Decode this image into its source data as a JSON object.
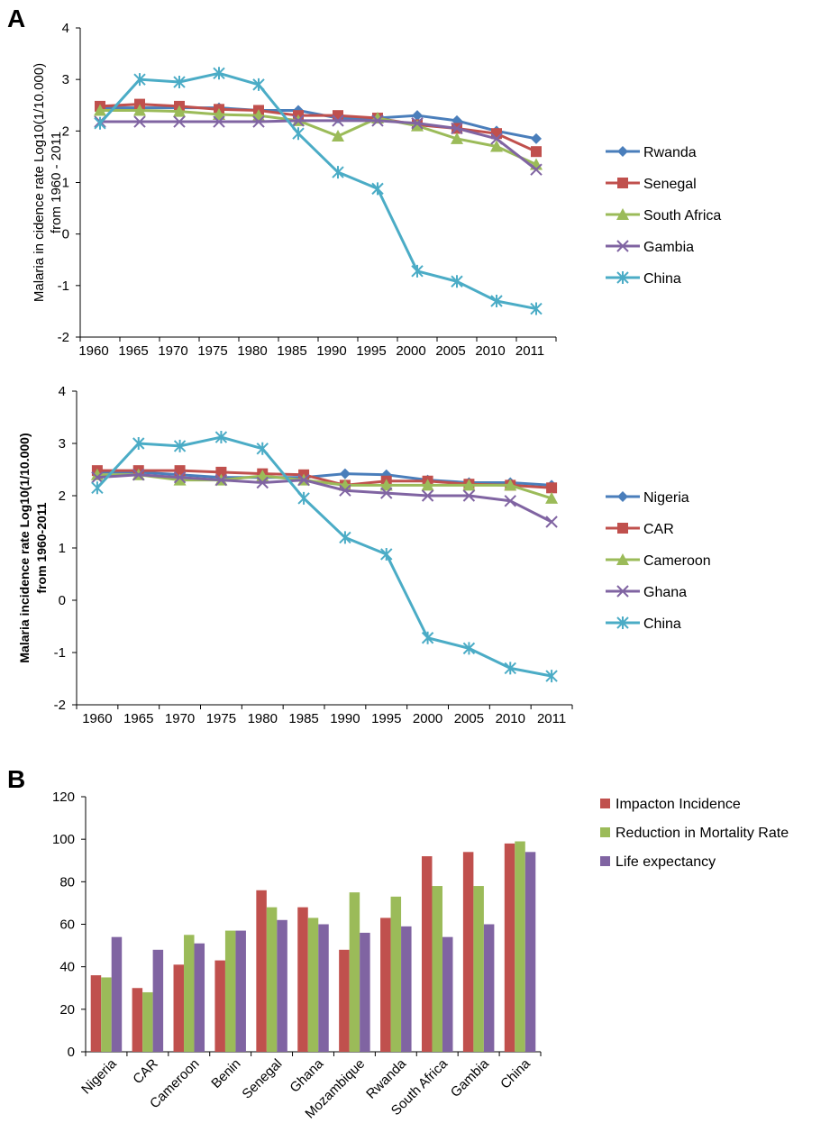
{
  "panels": {
    "a": "A",
    "b": "B"
  },
  "colors": {
    "rwanda": "#4a7ebb",
    "senegal": "#c0504d",
    "south_africa": "#9bbb59",
    "gambia": "#8064a2",
    "china": "#4bacc6",
    "bar_incidence": "#c0504d",
    "bar_mortality": "#9bbb59",
    "bar_life": "#8064a2"
  },
  "chart_data": [
    {
      "type": "line",
      "ylabel": [
        "Malaria in cidence rate Log10(1/10.000)",
        "from 1960 - 2011"
      ],
      "ylim": [
        -2,
        4
      ],
      "yticks": [
        -2,
        -1,
        0,
        1,
        2,
        3,
        4
      ],
      "x": [
        "1960",
        "1965",
        "1970",
        "1975",
        "1980",
        "1985",
        "1990",
        "1995",
        "2000",
        "2005",
        "2010",
        "2011"
      ],
      "legend_position": "right",
      "series": [
        {
          "name": "Rwanda",
          "marker": "diamond",
          "color": "#4a7ebb",
          "values": [
            2.45,
            2.45,
            2.45,
            2.45,
            2.4,
            2.4,
            2.25,
            2.25,
            2.3,
            2.2,
            2.0,
            1.85
          ]
        },
        {
          "name": "Senegal",
          "marker": "square",
          "color": "#c0504d",
          "values": [
            2.48,
            2.52,
            2.48,
            2.42,
            2.4,
            2.3,
            2.3,
            2.25,
            2.12,
            2.05,
            1.95,
            1.6
          ]
        },
        {
          "name": "South Africa",
          "marker": "triangle",
          "color": "#9bbb59",
          "values": [
            2.4,
            2.4,
            2.38,
            2.32,
            2.3,
            2.2,
            1.9,
            2.25,
            2.1,
            1.85,
            1.7,
            1.35
          ]
        },
        {
          "name": "Gambia",
          "marker": "x",
          "color": "#8064a2",
          "values": [
            2.18,
            2.18,
            2.18,
            2.18,
            2.18,
            2.2,
            2.2,
            2.2,
            2.15,
            2.05,
            1.85,
            1.25
          ]
        },
        {
          "name": "China",
          "marker": "star",
          "color": "#4bacc6",
          "values": [
            2.15,
            3.0,
            2.95,
            3.12,
            2.9,
            1.95,
            1.2,
            0.88,
            -0.72,
            -0.92,
            -1.3,
            -1.45
          ]
        }
      ]
    },
    {
      "type": "line",
      "ylabel": [
        "Malaria incidence rate Log10(1/10.000)",
        "from 1960-2011"
      ],
      "ylim": [
        -2,
        4
      ],
      "yticks": [
        -2,
        -1,
        0,
        1,
        2,
        3,
        4
      ],
      "x": [
        "1960",
        "1965",
        "1970",
        "1975",
        "1980",
        "1985",
        "1990",
        "1995",
        "2000",
        "2005",
        "2010",
        "2011"
      ],
      "legend_position": "right",
      "series": [
        {
          "name": "Nigeria",
          "marker": "diamond",
          "color": "#4a7ebb",
          "values": [
            2.45,
            2.45,
            2.4,
            2.35,
            2.35,
            2.35,
            2.42,
            2.4,
            2.3,
            2.25,
            2.25,
            2.2
          ]
        },
        {
          "name": "CAR",
          "marker": "square",
          "color": "#c0504d",
          "values": [
            2.48,
            2.48,
            2.48,
            2.45,
            2.42,
            2.4,
            2.2,
            2.28,
            2.28,
            2.22,
            2.2,
            2.15
          ]
        },
        {
          "name": "Cameroon",
          "marker": "triangle",
          "color": "#9bbb59",
          "values": [
            2.4,
            2.4,
            2.3,
            2.3,
            2.38,
            2.3,
            2.2,
            2.2,
            2.2,
            2.2,
            2.2,
            1.95
          ]
        },
        {
          "name": "Ghana",
          "marker": "x",
          "color": "#8064a2",
          "values": [
            2.35,
            2.4,
            2.35,
            2.3,
            2.25,
            2.3,
            2.1,
            2.05,
            2.0,
            2.0,
            1.9,
            1.5
          ]
        },
        {
          "name": "China",
          "marker": "star",
          "color": "#4bacc6",
          "values": [
            2.15,
            3.0,
            2.95,
            3.12,
            2.9,
            1.95,
            1.2,
            0.88,
            -0.72,
            -0.92,
            -1.3,
            -1.45
          ]
        }
      ]
    },
    {
      "type": "bar",
      "ylim": [
        0,
        120
      ],
      "yticks": [
        0,
        20,
        40,
        60,
        80,
        100,
        120
      ],
      "categories": [
        "Nigeria",
        "CAR",
        "Cameroon",
        "Benin",
        "Senegal",
        "Ghana",
        "Mozambique",
        "Rwanda",
        "South Africa",
        "Gambia",
        "China"
      ],
      "legend_position": "right",
      "series": [
        {
          "name": "Impacton Incidence",
          "color": "#c0504d",
          "values": [
            36,
            30,
            41,
            43,
            76,
            68,
            48,
            63,
            92,
            94,
            98
          ]
        },
        {
          "name": "Reduction in Mortality Rate",
          "color": "#9bbb59",
          "values": [
            35,
            28,
            55,
            57,
            68,
            63,
            75,
            73,
            78,
            78,
            99
          ]
        },
        {
          "name": "Life expectancy",
          "color": "#8064a2",
          "values": [
            54,
            48,
            51,
            57,
            62,
            60,
            56,
            59,
            54,
            60,
            94
          ]
        }
      ]
    }
  ]
}
